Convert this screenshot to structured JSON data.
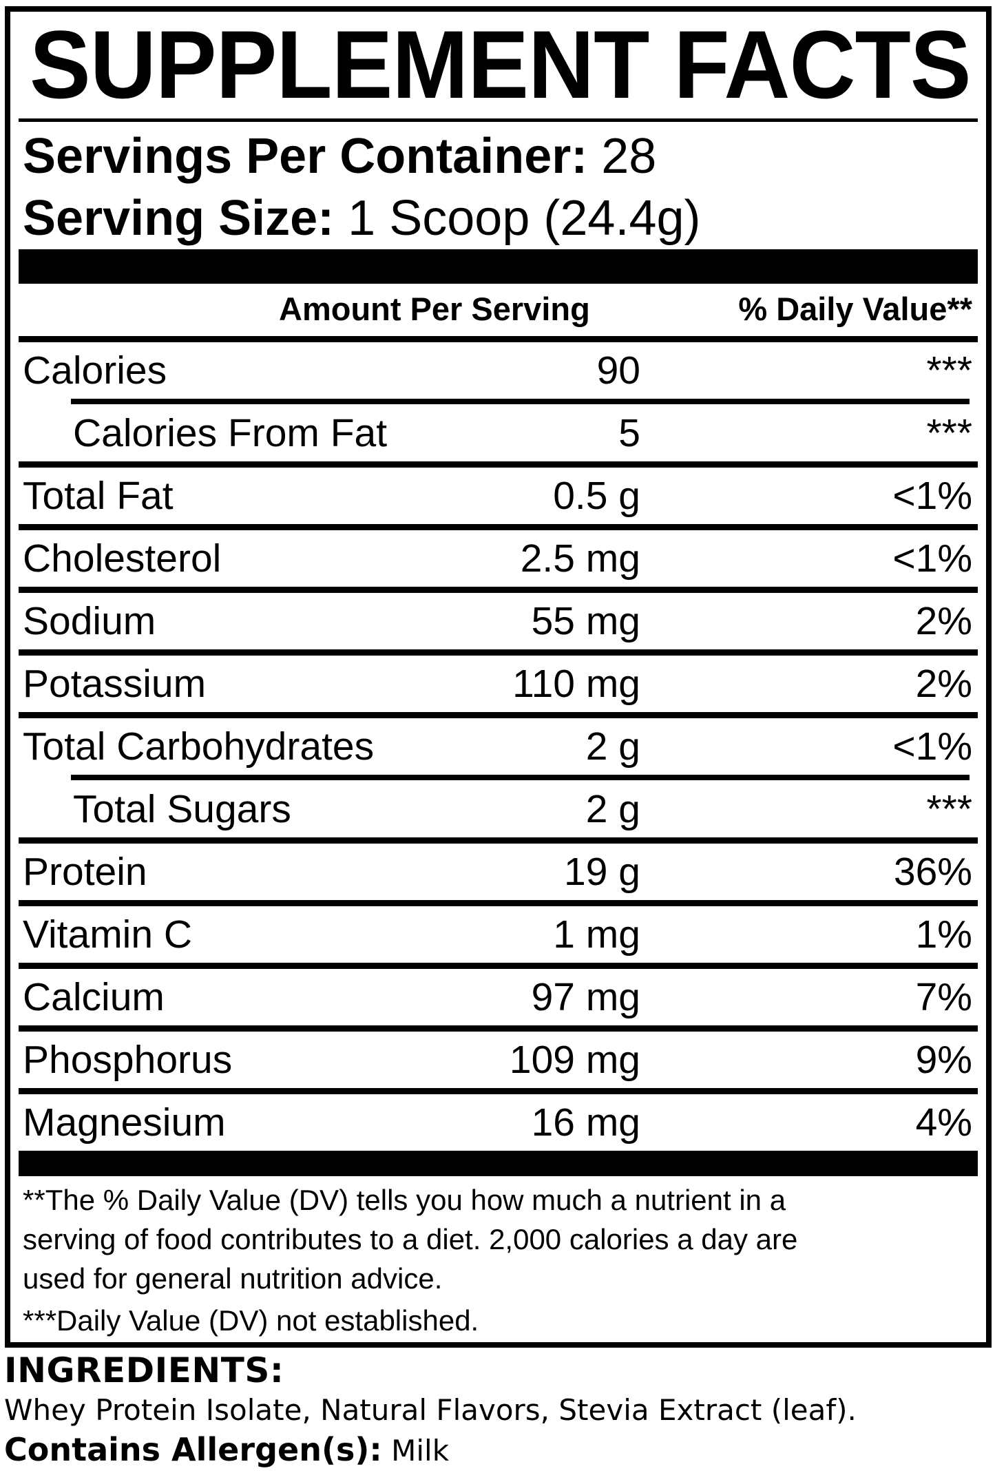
{
  "colors": {
    "ink": "#000000",
    "paper": "#ffffff"
  },
  "title": "SUPPLEMENT FACTS",
  "serving_info": {
    "servings_label": "Servings Per Container:",
    "servings_value": "28",
    "size_label": "Serving Size:",
    "size_value": "1 Scoop (24.4g)"
  },
  "table": {
    "headers": {
      "amount": "Amount Per Serving",
      "daily_value": "% Daily Value**"
    },
    "rows": [
      {
        "name": "Calories",
        "amount": "90",
        "dv": "***",
        "indent": false
      },
      {
        "name": "Calories From Fat",
        "amount": "5",
        "dv": "***",
        "indent": true
      },
      {
        "name": "Total Fat",
        "amount": "0.5 g",
        "dv": "<1%",
        "indent": false
      },
      {
        "name": "Cholesterol",
        "amount": "2.5 mg",
        "dv": "<1%",
        "indent": false
      },
      {
        "name": "Sodium",
        "amount": "55 mg",
        "dv": "2%",
        "indent": false
      },
      {
        "name": "Potassium",
        "amount": "110 mg",
        "dv": "2%",
        "indent": false
      },
      {
        "name": "Total Carbohydrates",
        "amount": "2 g",
        "dv": "<1%",
        "indent": false
      },
      {
        "name": "Total Sugars",
        "amount": "2 g",
        "dv": "***",
        "indent": true
      },
      {
        "name": "Protein",
        "amount": "19 g",
        "dv": "36%",
        "indent": false
      },
      {
        "name": "Vitamin C",
        "amount": "1 mg",
        "dv": "1%",
        "indent": false
      },
      {
        "name": "Calcium",
        "amount": "97 mg",
        "dv": "7%",
        "indent": false
      },
      {
        "name": "Phosphorus",
        "amount": "109 mg",
        "dv": "9%",
        "indent": false
      },
      {
        "name": "Magnesium",
        "amount": "16 mg",
        "dv": "4%",
        "indent": false
      }
    ]
  },
  "footnotes": {
    "daily_value_note": "**The % Daily Value (DV) tells you how much a nutrient in a\nserving of food contributes to a diet. 2,000 calories a day are\nused for general nutrition advice.",
    "not_established_note": "***Daily Value (DV) not established."
  },
  "ingredients": {
    "heading": "INGREDIENTS:",
    "list": "Whey Protein Isolate, Natural Flavors, Stevia Extract (leaf).",
    "allergen_label": "Contains Allergen(s):",
    "allergen_value": "Milk"
  }
}
